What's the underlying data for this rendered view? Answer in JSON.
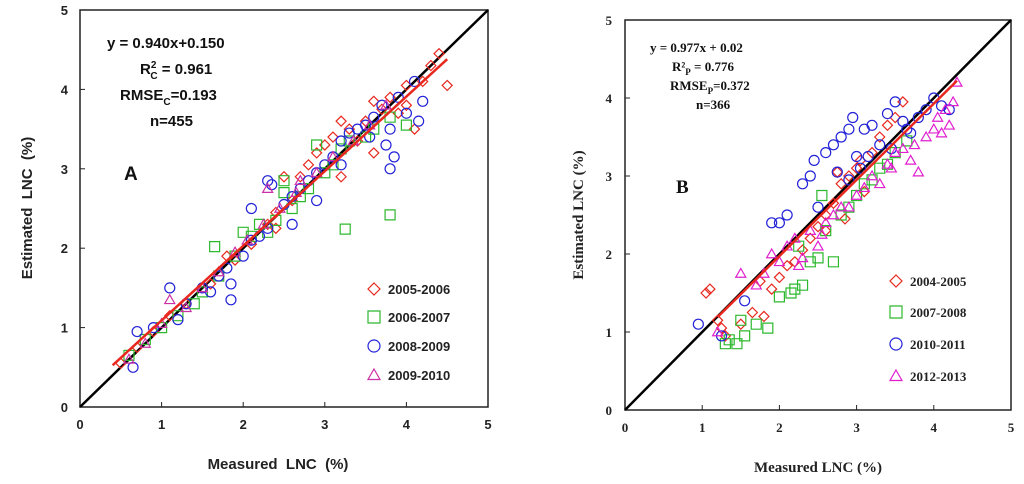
{
  "chart_data": [
    {
      "type": "scatter",
      "panel_label": "A",
      "xlabel": "Measured  LNC  (%)",
      "ylabel": "Estimated  LNC  (%)",
      "xlim": [
        0,
        5
      ],
      "ylim": [
        0,
        5
      ],
      "x_ticks": [
        "0",
        "1",
        "2",
        "3",
        "4",
        "5"
      ],
      "y_ticks": [
        "0",
        "1",
        "2",
        "3",
        "4",
        "5"
      ],
      "stats": {
        "equation": "y = 0.940x+0.150",
        "r2_label": "R",
        "r2_sup": "2",
        "r2_sub": "C",
        "r2_value": " = 0.961",
        "rmse_label": "RMSE",
        "rmse_sub": "C",
        "rmse_value": "=0.193",
        "n": "n=455"
      },
      "reference_line": {
        "name": "1:1 line",
        "slope": 1,
        "intercept": 0,
        "color": "#000000"
      },
      "fit_line": {
        "slope": 0.94,
        "intercept": 0.15,
        "x_range": [
          0.4,
          4.5
        ],
        "color": "#e8281e"
      },
      "legend_position": "bottom-right",
      "series": [
        {
          "name": "2005-2006",
          "marker": "diamond",
          "color": "#e8281e",
          "x": [
            0.5,
            0.7,
            0.9,
            1.1,
            1.3,
            1.6,
            1.9,
            2.1,
            2.3,
            2.4,
            2.5,
            2.6,
            2.7,
            2.8,
            2.9,
            3.0,
            3.1,
            3.2,
            3.3,
            3.4,
            3.5,
            3.6,
            3.7,
            3.8,
            3.9,
            4.0,
            4.1,
            4.2,
            4.3,
            4.4,
            4.5,
            3.2,
            3.6,
            4.0,
            2.4,
            1.8
          ],
          "y": [
            0.55,
            0.75,
            0.95,
            1.15,
            1.3,
            1.55,
            1.85,
            2.05,
            2.3,
            2.45,
            2.9,
            2.6,
            2.9,
            3.05,
            3.2,
            3.3,
            3.4,
            3.6,
            3.5,
            3.35,
            3.6,
            3.85,
            3.75,
            3.9,
            3.7,
            4.05,
            3.5,
            4.1,
            4.3,
            4.45,
            4.05,
            2.9,
            3.2,
            3.8,
            2.25,
            1.9
          ]
        },
        {
          "name": "2006-2007",
          "marker": "square",
          "color": "#2eb82e",
          "x": [
            0.6,
            0.8,
            1.0,
            1.2,
            1.4,
            1.5,
            1.7,
            1.9,
            2.0,
            2.1,
            2.2,
            2.3,
            2.4,
            2.5,
            2.6,
            2.7,
            2.8,
            2.9,
            3.0,
            3.1,
            3.2,
            3.3,
            3.5,
            3.6,
            3.8,
            4.0,
            3.8,
            3.25,
            1.65,
            2.5
          ],
          "y": [
            0.65,
            0.85,
            1.0,
            1.15,
            1.3,
            1.45,
            1.65,
            1.9,
            2.2,
            2.15,
            2.3,
            2.2,
            2.35,
            2.85,
            2.5,
            2.65,
            2.75,
            3.3,
            2.95,
            3.05,
            3.25,
            3.35,
            3.4,
            3.5,
            3.65,
            3.55,
            2.42,
            2.24,
            2.02,
            2.7
          ]
        },
        {
          "name": "2008-2009",
          "marker": "circle",
          "color": "#2323d8",
          "x": [
            0.65,
            0.7,
            0.9,
            1.1,
            1.2,
            1.3,
            1.5,
            1.6,
            1.7,
            1.8,
            1.85,
            2.0,
            2.1,
            2.2,
            2.3,
            2.35,
            2.5,
            2.6,
            2.7,
            2.8,
            2.9,
            3.0,
            3.1,
            3.2,
            3.3,
            3.4,
            3.5,
            3.55,
            3.6,
            3.7,
            3.75,
            3.8,
            3.85,
            3.9,
            4.0,
            4.1,
            4.2,
            4.15,
            3.8,
            3.2,
            2.9,
            2.6,
            2.1,
            1.85,
            2.3
          ],
          "y": [
            0.5,
            0.95,
            1.0,
            1.5,
            1.1,
            1.3,
            1.5,
            1.45,
            1.65,
            1.75,
            1.35,
            1.9,
            2.1,
            2.15,
            2.25,
            2.8,
            2.55,
            2.65,
            2.75,
            2.85,
            2.95,
            3.05,
            3.15,
            3.35,
            3.45,
            3.5,
            3.55,
            3.4,
            3.65,
            3.8,
            3.3,
            3.0,
            3.15,
            3.9,
            3.7,
            4.1,
            3.85,
            3.6,
            3.5,
            3.05,
            2.6,
            2.3,
            2.5,
            1.55,
            2.85
          ]
        },
        {
          "name": "2009-2010",
          "marker": "triangle",
          "color": "#cc2fa6",
          "x": [
            0.6,
            0.8,
            1.0,
            1.1,
            1.3,
            1.5,
            1.7,
            1.9,
            2.05,
            2.25,
            2.45,
            2.65,
            2.9,
            3.1,
            3.35,
            3.55,
            3.75,
            2.3,
            2.7
          ],
          "y": [
            0.6,
            0.8,
            1.05,
            1.35,
            1.25,
            1.5,
            1.7,
            1.95,
            2.1,
            2.3,
            2.5,
            2.7,
            2.95,
            3.15,
            3.35,
            3.55,
            3.8,
            2.75,
            2.85
          ]
        }
      ]
    },
    {
      "type": "scatter",
      "panel_label": "B",
      "xlabel": "Measured LNC (%)",
      "ylabel": "Estimated LNC (%)",
      "xlim": [
        0,
        5
      ],
      "ylim": [
        0,
        5
      ],
      "x_ticks": [
        "0",
        "1",
        "2",
        "3",
        "4",
        "5"
      ],
      "y_ticks": [
        "0",
        "1",
        "2",
        "3",
        "4",
        "5"
      ],
      "stats": {
        "equation": "y = 0.977x + 0.02",
        "r2_label": "R²",
        "r2_sub": "P",
        "r2_value": " = 0.776",
        "rmse_label": "RMSE",
        "rmse_sub": "P",
        "rmse_value": "=0.372",
        "n": "n=366"
      },
      "reference_line": {
        "name": "1:1 line",
        "slope": 1,
        "intercept": 0,
        "color": "#000000"
      },
      "fit_line": {
        "slope": 0.977,
        "intercept": 0.02,
        "x_range": [
          1.2,
          4.3
        ],
        "color": "#e8281e"
      },
      "legend_position": "bottom-right",
      "series": [
        {
          "name": "2004-2005",
          "marker": "diamond",
          "color": "#e8281e",
          "x": [
            1.05,
            1.1,
            1.2,
            1.3,
            1.5,
            1.65,
            1.8,
            1.9,
            2.0,
            2.1,
            2.2,
            2.3,
            2.4,
            2.5,
            2.6,
            2.7,
            2.75,
            2.8,
            2.9,
            3.0,
            3.1,
            3.2,
            3.3,
            3.4,
            3.5,
            3.6,
            1.25,
            1.75,
            2.6,
            2.85,
            3.05
          ],
          "y": [
            1.5,
            1.55,
            1.15,
            0.95,
            1.1,
            1.25,
            1.2,
            1.55,
            1.7,
            1.85,
            1.9,
            2.05,
            2.2,
            2.35,
            2.5,
            2.65,
            3.05,
            2.9,
            3.0,
            3.1,
            2.8,
            3.3,
            3.5,
            3.65,
            3.75,
            3.95,
            1.05,
            1.65,
            2.3,
            2.45,
            3.2
          ]
        },
        {
          "name": "2007-2008",
          "marker": "square",
          "color": "#2eb82e",
          "x": [
            1.3,
            1.35,
            1.45,
            1.5,
            1.55,
            1.7,
            1.85,
            2.0,
            2.15,
            2.2,
            2.3,
            2.4,
            2.5,
            2.6,
            2.7,
            2.8,
            2.9,
            3.0,
            3.1,
            3.2,
            3.3,
            3.4,
            3.5,
            3.65,
            2.55,
            2.25
          ],
          "y": [
            0.85,
            0.9,
            0.85,
            1.15,
            0.95,
            1.1,
            1.05,
            1.45,
            1.5,
            1.55,
            1.6,
            1.9,
            1.95,
            2.3,
            1.9,
            2.5,
            2.6,
            2.75,
            2.9,
            2.95,
            3.1,
            3.15,
            3.3,
            3.45,
            2.75,
            2.1
          ]
        },
        {
          "name": "2010-2011",
          "marker": "circle",
          "color": "#2323d8",
          "x": [
            0.95,
            1.25,
            1.55,
            1.9,
            2.0,
            2.1,
            2.3,
            2.4,
            2.45,
            2.6,
            2.7,
            2.8,
            2.9,
            2.95,
            3.0,
            3.05,
            3.1,
            3.2,
            3.3,
            3.4,
            3.5,
            3.6,
            3.7,
            3.8,
            3.9,
            4.0,
            4.1,
            4.2,
            2.5,
            2.75,
            3.15,
            3.45,
            3.65,
            2.9
          ],
          "y": [
            1.1,
            0.95,
            1.4,
            2.4,
            2.4,
            2.5,
            2.9,
            3.0,
            3.2,
            3.3,
            3.4,
            3.5,
            3.6,
            3.75,
            3.25,
            3.1,
            3.6,
            3.65,
            3.4,
            3.8,
            3.95,
            3.7,
            3.55,
            3.75,
            3.85,
            4.0,
            3.9,
            3.85,
            2.6,
            3.05,
            3.25,
            3.35,
            3.6,
            2.95
          ]
        },
        {
          "name": "2012-2013",
          "marker": "triangle",
          "color": "#e01ecf",
          "x": [
            1.2,
            1.5,
            1.7,
            1.8,
            1.9,
            2.0,
            2.1,
            2.2,
            2.3,
            2.4,
            2.5,
            2.6,
            2.7,
            2.8,
            2.9,
            3.0,
            3.1,
            3.2,
            3.3,
            3.4,
            3.5,
            3.6,
            3.7,
            3.8,
            3.9,
            4.0,
            4.05,
            4.1,
            4.15,
            4.2,
            4.25,
            4.3,
            2.25,
            2.55,
            3.45,
            3.75
          ],
          "y": [
            1.0,
            1.75,
            1.6,
            1.75,
            2.0,
            1.9,
            2.1,
            2.2,
            1.95,
            2.3,
            2.1,
            2.4,
            2.5,
            2.6,
            2.6,
            2.75,
            2.85,
            3.0,
            2.9,
            3.15,
            3.3,
            3.35,
            3.2,
            3.05,
            3.5,
            3.6,
            3.75,
            3.55,
            3.85,
            3.65,
            3.95,
            4.2,
            1.85,
            2.25,
            3.1,
            3.4
          ]
        }
      ]
    }
  ]
}
